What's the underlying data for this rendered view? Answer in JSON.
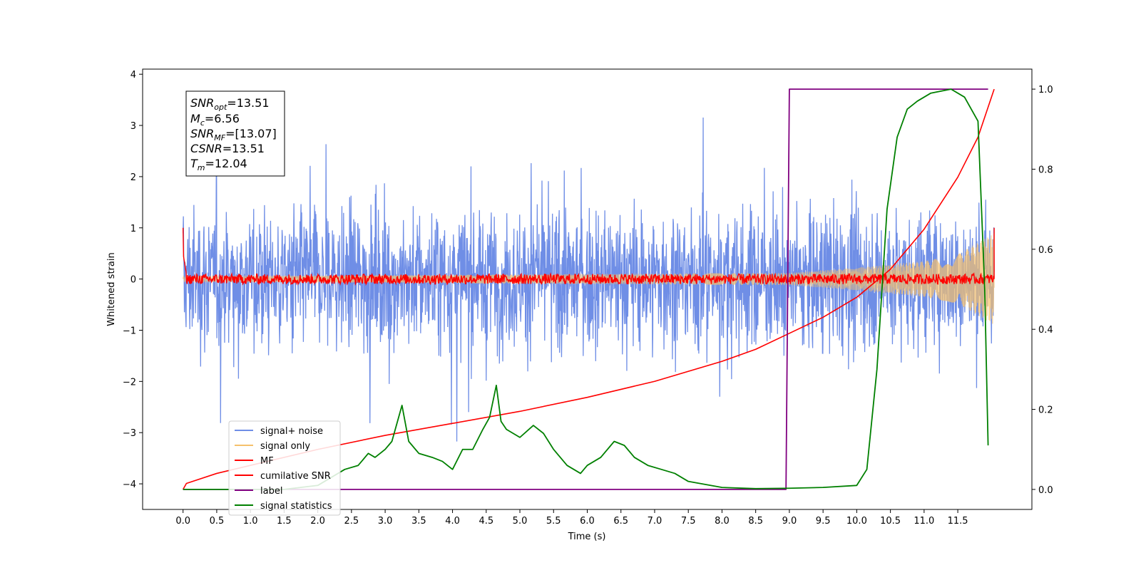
{
  "chart_data": {
    "type": "line",
    "xlabel": "Time (s)",
    "ylabel": "Whitened strain",
    "xlim": [
      -0.6,
      12.6
    ],
    "ylim": [
      -4.5,
      4.1
    ],
    "y2lim": [
      -0.05,
      1.05
    ],
    "xticks": [
      "0.0",
      "0.5",
      "1.0",
      "1.5",
      "2.0",
      "2.5",
      "3.0",
      "3.5",
      "4.0",
      "4.5",
      "5.0",
      "5.5",
      "6.0",
      "6.5",
      "7.0",
      "7.5",
      "8.0",
      "8.5",
      "9.0",
      "9.5",
      "10.0",
      "10.5",
      "11.0",
      "11.5"
    ],
    "yticks": [
      "4",
      "3",
      "2",
      "1",
      "0",
      "−1",
      "−2",
      "−3",
      "−4"
    ],
    "y2ticks": [
      "1.0",
      "0.8",
      "0.6",
      "0.4",
      "0.2",
      "0.0"
    ],
    "legend_position": "lower-left",
    "annotation": {
      "snr_opt": "=13.51",
      "mc": "=6.56",
      "snr_mf": "=[13.07]",
      "csnr": "=13.51",
      "tm": "=12.04"
    },
    "series": [
      {
        "name": "signal+ noise",
        "color": "#6f8ee6",
        "axis": "left",
        "description_values": "noise-like, amplitude about ±2 with peaks to about ±3.7, t 0 to 12.04"
      },
      {
        "name": "signal only",
        "color": "#f5c16c",
        "axis": "left",
        "envelope": {
          "t": [
            0,
            9,
            10,
            11,
            11.5,
            12.04
          ],
          "amp": [
            0.05,
            0.12,
            0.22,
            0.35,
            0.48,
            0.9
          ]
        }
      },
      {
        "name": "MF",
        "color": "#ff0000",
        "axis": "left",
        "description_values": "near 0 with small noise about ±0.1, start at 1.0 at t=0 and end at 1.0 at t=12.04"
      },
      {
        "name": "cumilative SNR",
        "color": "#ff0000",
        "axis": "right",
        "t": [
          0,
          0.05,
          0.5,
          1,
          2,
          3,
          4,
          5,
          6,
          7,
          8,
          8.5,
          9,
          9.5,
          10,
          10.5,
          11,
          11.5,
          11.8,
          12.04
        ],
        "values": [
          0.0,
          0.015,
          0.04,
          0.06,
          0.1,
          0.135,
          0.165,
          0.195,
          0.23,
          0.27,
          0.32,
          0.35,
          0.39,
          0.43,
          0.48,
          0.55,
          0.65,
          0.78,
          0.88,
          1.0
        ]
      },
      {
        "name": "label",
        "color": "#800080",
        "axis": "right",
        "t": [
          0,
          8.95,
          9.0,
          11.95
        ],
        "values": [
          0,
          0,
          1,
          1
        ]
      },
      {
        "name": "signal statistics",
        "color": "#008000",
        "axis": "right",
        "t": [
          0,
          0.5,
          1,
          1.5,
          2,
          2.2,
          2.4,
          2.6,
          2.75,
          2.85,
          3.0,
          3.1,
          3.25,
          3.35,
          3.5,
          3.7,
          3.85,
          4.0,
          4.15,
          4.3,
          4.45,
          4.55,
          4.65,
          4.72,
          4.8,
          5.0,
          5.2,
          5.35,
          5.5,
          5.7,
          5.9,
          6.0,
          6.2,
          6.4,
          6.55,
          6.7,
          6.9,
          7.1,
          7.3,
          7.5,
          8.0,
          8.5,
          9.0,
          9.5,
          10.0,
          10.15,
          10.3,
          10.45,
          10.6,
          10.75,
          10.9,
          11.1,
          11.4,
          11.6,
          11.8,
          11.9,
          11.95
        ],
        "values": [
          0.0,
          0.0,
          0.0,
          0.0,
          0.01,
          0.03,
          0.05,
          0.06,
          0.09,
          0.08,
          0.1,
          0.12,
          0.21,
          0.12,
          0.09,
          0.08,
          0.07,
          0.05,
          0.1,
          0.1,
          0.15,
          0.18,
          0.26,
          0.17,
          0.15,
          0.13,
          0.16,
          0.14,
          0.1,
          0.06,
          0.04,
          0.06,
          0.08,
          0.12,
          0.11,
          0.08,
          0.06,
          0.05,
          0.04,
          0.02,
          0.005,
          0.002,
          0.003,
          0.005,
          0.01,
          0.05,
          0.3,
          0.7,
          0.88,
          0.95,
          0.97,
          0.99,
          1.0,
          0.98,
          0.92,
          0.5,
          0.11
        ]
      }
    ]
  },
  "legend": {
    "items": [
      "signal+ noise",
      "signal only",
      "MF",
      "cumilative SNR",
      "label",
      "signal statistics"
    ]
  }
}
